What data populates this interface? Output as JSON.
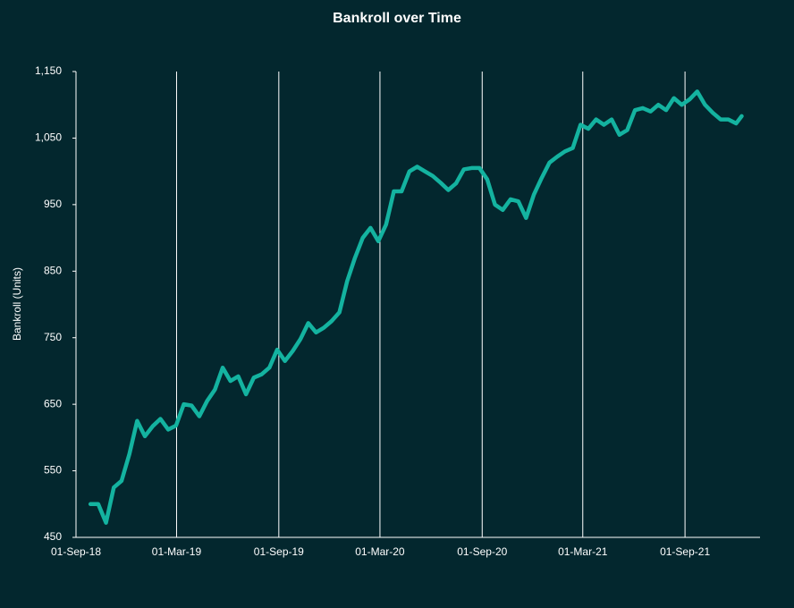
{
  "chart_data": {
    "type": "line",
    "title": "Bankroll over Time",
    "y_label": "Bankroll  (Units)",
    "x": [
      "2018-09-27",
      "2018-10-11",
      "2018-10-25",
      "2018-11-08",
      "2018-11-22",
      "2018-12-06",
      "2018-12-20",
      "2019-01-03",
      "2019-01-17",
      "2019-01-31",
      "2019-02-14",
      "2019-02-28",
      "2019-03-14",
      "2019-03-28",
      "2019-04-11",
      "2019-04-25",
      "2019-05-09",
      "2019-05-23",
      "2019-06-06",
      "2019-06-20",
      "2019-07-04",
      "2019-07-18",
      "2019-08-01",
      "2019-08-15",
      "2019-08-29",
      "2019-09-12",
      "2019-09-26",
      "2019-10-10",
      "2019-10-24",
      "2019-11-07",
      "2019-11-21",
      "2019-12-05",
      "2019-12-19",
      "2020-01-02",
      "2020-01-16",
      "2020-01-30",
      "2020-02-13",
      "2020-02-27",
      "2020-03-12",
      "2020-03-26",
      "2020-04-09",
      "2020-04-23",
      "2020-05-07",
      "2020-05-21",
      "2020-06-04",
      "2020-06-18",
      "2020-07-02",
      "2020-07-16",
      "2020-07-30",
      "2020-08-13",
      "2020-08-27",
      "2020-09-10",
      "2020-09-24",
      "2020-10-08",
      "2020-10-22",
      "2020-11-05",
      "2020-11-19",
      "2020-12-03",
      "2020-12-17",
      "2020-12-31",
      "2021-01-14",
      "2021-01-28",
      "2021-02-11",
      "2021-02-25",
      "2021-03-11",
      "2021-03-25",
      "2021-04-08",
      "2021-04-22",
      "2021-05-06",
      "2021-05-20",
      "2021-06-03",
      "2021-06-17",
      "2021-07-01",
      "2021-07-15",
      "2021-07-29",
      "2021-08-12",
      "2021-08-26",
      "2021-09-09",
      "2021-09-23",
      "2021-10-07",
      "2021-10-21",
      "2021-11-04",
      "2021-11-18",
      "2021-12-02",
      "2021-12-12"
    ],
    "series": [
      {
        "name": "Bankroll",
        "color": "#14b3a0",
        "values": [
          500,
          500,
          472,
          525,
          535,
          575,
          625,
          602,
          617,
          628,
          612,
          618,
          650,
          648,
          632,
          655,
          672,
          705,
          685,
          692,
          665,
          690,
          695,
          705,
          732,
          715,
          730,
          748,
          772,
          758,
          765,
          775,
          788,
          835,
          870,
          900,
          915,
          895,
          920,
          970,
          970,
          1000,
          1007,
          1000,
          993,
          983,
          972,
          982,
          1003,
          1005,
          1005,
          988,
          950,
          942,
          958,
          955,
          930,
          965,
          990,
          1013,
          1022,
          1030,
          1035,
          1070,
          1064,
          1078,
          1070,
          1078,
          1055,
          1062,
          1092,
          1095,
          1090,
          1100,
          1092,
          1110,
          1100,
          1108,
          1120,
          1100,
          1088,
          1078,
          1078,
          1072,
          1083
        ]
      }
    ],
    "xlim": [
      "2018-09-01",
      "2022-01-14"
    ],
    "xticks": [
      {
        "value": "2018-09-01",
        "label": "01-Sep-18"
      },
      {
        "value": "2019-03-01",
        "label": "01-Mar-19"
      },
      {
        "value": "2019-09-01",
        "label": "01-Sep-19"
      },
      {
        "value": "2020-03-01",
        "label": "01-Mar-20"
      },
      {
        "value": "2020-09-01",
        "label": "01-Sep-20"
      },
      {
        "value": "2021-03-01",
        "label": "01-Mar-21"
      },
      {
        "value": "2021-09-01",
        "label": "01-Sep-21"
      }
    ],
    "ylim": [
      450,
      1150
    ],
    "yticks": [
      450,
      550,
      650,
      750,
      850,
      950,
      {
        "value": 1050,
        "label": "1,050"
      },
      {
        "value": 1150,
        "label": "1,150"
      }
    ],
    "grid": "x"
  }
}
